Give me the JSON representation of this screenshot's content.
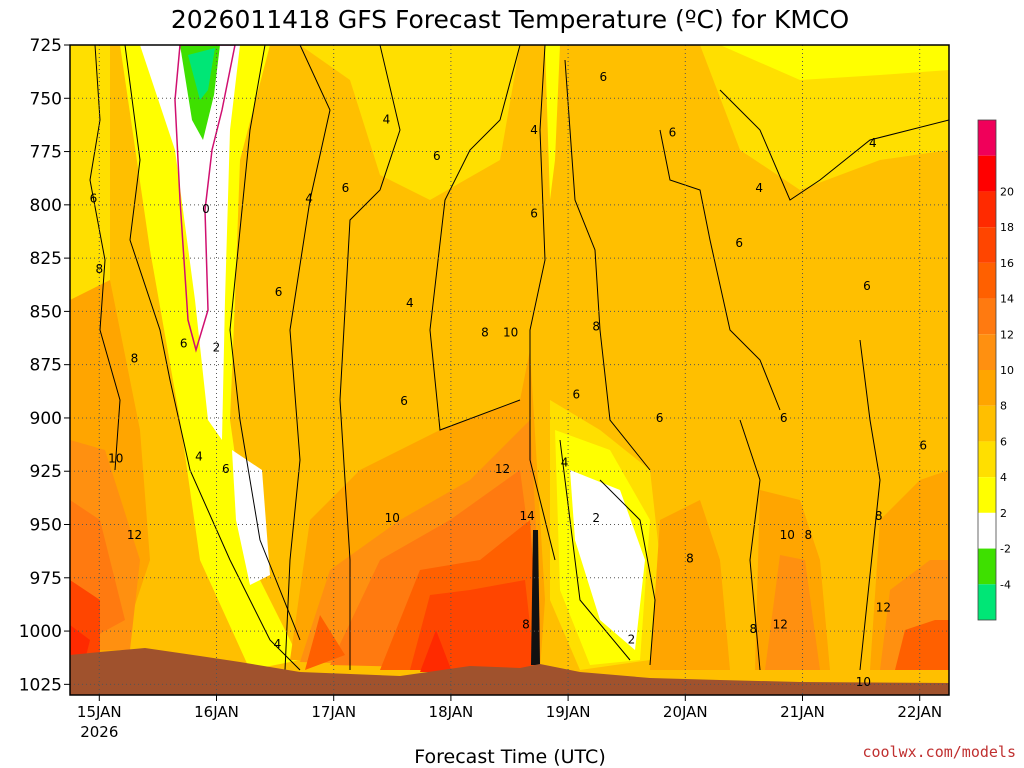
{
  "chart_data": {
    "type": "heatmap",
    "title": "2026011418 GFS Forecast Temperature (ºC) for KMCO",
    "xlabel": "Forecast Time (UTC)",
    "ylabel": "",
    "credit": "coolwx.com/models",
    "y_axis": {
      "scale": "pressure",
      "range": [
        1030,
        725
      ],
      "ticks": [
        "725",
        "750",
        "775",
        "800",
        "825",
        "850",
        "875",
        "900",
        "925",
        "950",
        "975",
        "1000",
        "1025"
      ]
    },
    "x_axis": {
      "range_days": [
        14.75,
        22.25
      ],
      "ticks": [
        {
          "label": "15JAN",
          "sub": "2026"
        },
        {
          "label": "16JAN",
          "sub": ""
        },
        {
          "label": "17JAN",
          "sub": ""
        },
        {
          "label": "18JAN",
          "sub": ""
        },
        {
          "label": "19JAN",
          "sub": ""
        },
        {
          "label": "20JAN",
          "sub": ""
        },
        {
          "label": "21JAN",
          "sub": ""
        },
        {
          "label": "22JAN",
          "sub": ""
        }
      ]
    },
    "grid": true,
    "colorbar": {
      "placement": "right",
      "bins": [
        {
          "label": "",
          "color": "#f0005a"
        },
        {
          "label": "20",
          "color": "#ff0000"
        },
        {
          "label": "18",
          "color": "#ff2a00"
        },
        {
          "label": "16",
          "color": "#ff4500"
        },
        {
          "label": "14",
          "color": "#ff6000"
        },
        {
          "label": "12",
          "color": "#ff7a10"
        },
        {
          "label": "10",
          "color": "#ff9010"
        },
        {
          "label": "8",
          "color": "#ffa500"
        },
        {
          "label": "6",
          "color": "#ffbf00"
        },
        {
          "label": "4",
          "color": "#ffdf00"
        },
        {
          "label": "2",
          "color": "#ffff00"
        },
        {
          "label": "-2",
          "color": "#ffffff"
        },
        {
          "label": "-4",
          "color": "#3ee000"
        },
        {
          "label": "",
          "color": "#00e676"
        }
      ]
    },
    "contour_labels": [
      {
        "text": "6",
        "x": 19.3,
        "y": 740
      },
      {
        "text": "4",
        "x": 18.71,
        "y": 765
      },
      {
        "text": "4",
        "x": 17.45,
        "y": 760
      },
      {
        "text": "6",
        "x": 17.88,
        "y": 777
      },
      {
        "text": "6",
        "x": 19.89,
        "y": 766
      },
      {
        "text": "4",
        "x": 20.63,
        "y": 792
      },
      {
        "text": "4",
        "x": 21.6,
        "y": 771
      },
      {
        "text": "6",
        "x": 14.95,
        "y": 797
      },
      {
        "text": "0",
        "x": 15.91,
        "y": 802
      },
      {
        "text": "4",
        "x": 16.79,
        "y": 797
      },
      {
        "text": "6",
        "x": 17.1,
        "y": 792
      },
      {
        "text": "6",
        "x": 18.71,
        "y": 804
      },
      {
        "text": "6",
        "x": 20.46,
        "y": 818
      },
      {
        "text": "8",
        "x": 15.0,
        "y": 830
      },
      {
        "text": "6",
        "x": 16.53,
        "y": 841
      },
      {
        "text": "4",
        "x": 17.65,
        "y": 846
      },
      {
        "text": "6",
        "x": 21.55,
        "y": 838
      },
      {
        "text": "8",
        "x": 19.24,
        "y": 857
      },
      {
        "text": "10",
        "x": 18.51,
        "y": 860
      },
      {
        "text": "8",
        "x": 18.29,
        "y": 860
      },
      {
        "text": "6",
        "x": 15.72,
        "y": 865
      },
      {
        "text": "2",
        "x": 16.0,
        "y": 867
      },
      {
        "text": "8",
        "x": 15.3,
        "y": 872
      },
      {
        "text": "6",
        "x": 17.6,
        "y": 892
      },
      {
        "text": "6",
        "x": 19.07,
        "y": 889
      },
      {
        "text": "6",
        "x": 19.78,
        "y": 900
      },
      {
        "text": "6",
        "x": 20.84,
        "y": 900
      },
      {
        "text": "6",
        "x": 22.03,
        "y": 913
      },
      {
        "text": "10",
        "x": 15.14,
        "y": 919
      },
      {
        "text": "4",
        "x": 15.85,
        "y": 918
      },
      {
        "text": "4",
        "x": 18.97,
        "y": 921
      },
      {
        "text": "12",
        "x": 18.44,
        "y": 924
      },
      {
        "text": "6",
        "x": 16.08,
        "y": 924
      },
      {
        "text": "10",
        "x": 17.5,
        "y": 947
      },
      {
        "text": "14",
        "x": 18.65,
        "y": 946
      },
      {
        "text": "2",
        "x": 19.24,
        "y": 947
      },
      {
        "text": "12",
        "x": 15.3,
        "y": 955
      },
      {
        "text": "8",
        "x": 21.65,
        "y": 946
      },
      {
        "text": "10",
        "x": 20.87,
        "y": 955
      },
      {
        "text": "8",
        "x": 21.05,
        "y": 955
      },
      {
        "text": "8",
        "x": 20.04,
        "y": 966
      },
      {
        "text": "12",
        "x": 21.69,
        "y": 989
      },
      {
        "text": "8",
        "x": 18.64,
        "y": 997
      },
      {
        "text": "8",
        "x": 20.58,
        "y": 999
      },
      {
        "text": "12",
        "x": 20.81,
        "y": 997
      },
      {
        "text": "2",
        "x": 19.54,
        "y": 1004
      },
      {
        "text": "4",
        "x": 16.52,
        "y": 1006
      },
      {
        "text": "10",
        "x": 21.52,
        "y": 1024
      }
    ]
  }
}
